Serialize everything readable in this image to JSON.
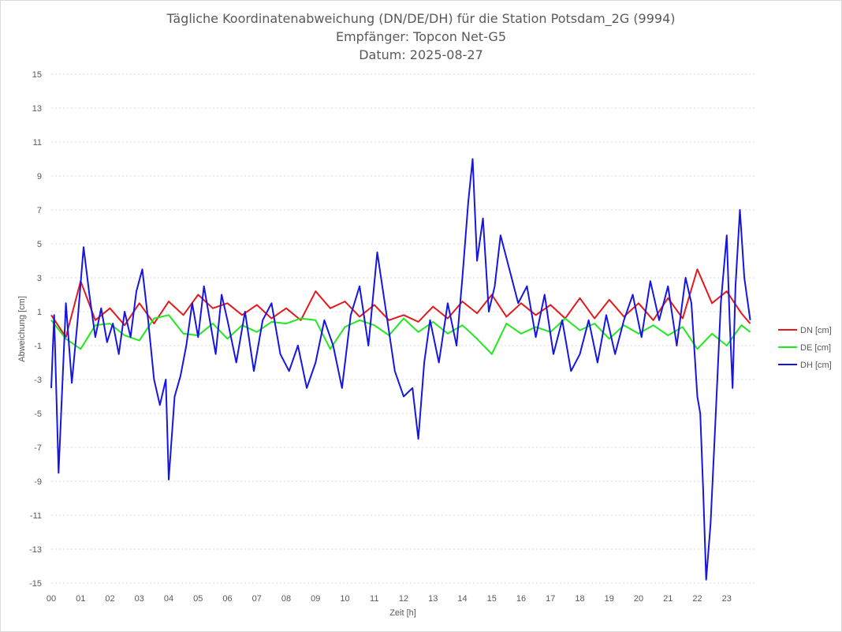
{
  "chart_data": {
    "type": "line",
    "title": [
      "Tägliche Koordinatenabweichung (DN/DE/DH) für die Station Potsdam_2G (9994)",
      "Empfänger: Topcon Net-G5",
      "Datum: 2025-08-27"
    ],
    "xlabel": "Zeit [h]",
    "ylabel": "Abweichung [cm]",
    "xlim": [
      0,
      24
    ],
    "ylim": [
      -15,
      15
    ],
    "x_ticks": [
      "00",
      "01",
      "02",
      "03",
      "04",
      "05",
      "06",
      "07",
      "08",
      "09",
      "10",
      "11",
      "12",
      "13",
      "14",
      "15",
      "16",
      "17",
      "18",
      "19",
      "20",
      "21",
      "22",
      "23"
    ],
    "y_ticks": [
      15,
      13,
      11,
      9,
      7,
      5,
      3,
      1,
      -1,
      -3,
      -5,
      -7,
      -9,
      -11,
      -13,
      -15
    ],
    "grid": "horizontal-dotted",
    "legend_position": "right",
    "series": [
      {
        "name": "DN [cm]",
        "color": "#e31a1c",
        "x": [
          0,
          0.5,
          1,
          1.5,
          2,
          2.5,
          3,
          3.5,
          4,
          4.5,
          5,
          5.5,
          6,
          6.5,
          7,
          7.5,
          8,
          8.5,
          9,
          9.5,
          10,
          10.5,
          11,
          11.5,
          12,
          12.5,
          13,
          13.5,
          14,
          14.5,
          15,
          15.5,
          16,
          16.5,
          17,
          17.5,
          18,
          18.5,
          19,
          19.5,
          20,
          20.5,
          21,
          21.5,
          22,
          22.5,
          23,
          23.5,
          23.8
        ],
        "values": [
          0.8,
          -0.5,
          2.8,
          0.5,
          1.2,
          0.2,
          1.5,
          0.3,
          1.6,
          0.8,
          2.0,
          1.2,
          1.5,
          0.8,
          1.4,
          0.6,
          1.2,
          0.5,
          2.2,
          1.2,
          1.6,
          0.7,
          1.4,
          0.5,
          0.8,
          0.4,
          1.3,
          0.6,
          1.6,
          0.9,
          2.0,
          0.7,
          1.5,
          0.8,
          1.4,
          0.6,
          1.8,
          0.6,
          1.7,
          0.7,
          1.5,
          0.5,
          1.8,
          0.6,
          3.5,
          1.5,
          2.2,
          0.9,
          0.3
        ]
      },
      {
        "name": "DE [cm]",
        "color": "#22e81f",
        "x": [
          0,
          0.5,
          1,
          1.5,
          2,
          2.5,
          3,
          3.5,
          4,
          4.5,
          5,
          5.5,
          6,
          6.5,
          7,
          7.5,
          8,
          8.5,
          9,
          9.5,
          10,
          10.5,
          11,
          11.5,
          12,
          12.5,
          13,
          13.5,
          14,
          14.5,
          15,
          15.5,
          16,
          16.5,
          17,
          17.5,
          18,
          18.5,
          19,
          19.5,
          20,
          20.5,
          21,
          21.5,
          22,
          22.5,
          23,
          23.5,
          23.8
        ],
        "values": [
          0.5,
          -0.6,
          -1.2,
          0.2,
          0.3,
          -0.4,
          -0.7,
          0.6,
          0.8,
          -0.3,
          -0.4,
          0.3,
          -0.6,
          0.2,
          -0.2,
          0.4,
          0.3,
          0.6,
          0.5,
          -1.2,
          0.1,
          0.5,
          0.2,
          -0.4,
          0.6,
          -0.2,
          0.4,
          -0.3,
          0.2,
          -0.6,
          -1.5,
          0.3,
          -0.3,
          0.1,
          -0.2,
          0.6,
          -0.1,
          0.3,
          -0.6,
          0.2,
          -0.3,
          0.2,
          -0.4,
          0.1,
          -1.2,
          -0.3,
          -1.0,
          0.2,
          -0.2
        ]
      },
      {
        "name": "DH [cm]",
        "color": "#1616e0",
        "x": [
          0,
          0.1,
          0.25,
          0.35,
          0.5,
          0.7,
          0.9,
          1.1,
          1.3,
          1.5,
          1.7,
          1.9,
          2.1,
          2.3,
          2.5,
          2.7,
          2.9,
          3.1,
          3.3,
          3.5,
          3.7,
          3.9,
          4.0,
          4.2,
          4.4,
          4.6,
          4.8,
          5.0,
          5.2,
          5.4,
          5.6,
          5.8,
          6.0,
          6.3,
          6.6,
          6.9,
          7.2,
          7.5,
          7.8,
          8.1,
          8.4,
          8.7,
          9.0,
          9.3,
          9.6,
          9.9,
          10.2,
          10.5,
          10.8,
          11.1,
          11.4,
          11.7,
          12.0,
          12.3,
          12.5,
          12.7,
          12.9,
          13.2,
          13.5,
          13.8,
          14.0,
          14.2,
          14.35,
          14.5,
          14.7,
          14.9,
          15.1,
          15.3,
          15.6,
          15.9,
          16.2,
          16.5,
          16.8,
          17.1,
          17.4,
          17.7,
          18.0,
          18.3,
          18.6,
          18.9,
          19.2,
          19.5,
          19.8,
          20.1,
          20.4,
          20.7,
          21.0,
          21.3,
          21.6,
          21.8,
          22.0,
          22.1,
          22.2,
          22.3,
          22.45,
          22.6,
          22.8,
          23.0,
          23.1,
          23.2,
          23.3,
          23.45,
          23.6,
          23.8
        ],
        "values": [
          -3.5,
          0.8,
          -8.5,
          -4.5,
          1.5,
          -3.2,
          0.5,
          4.8,
          2.0,
          -0.5,
          1.2,
          -0.8,
          0.3,
          -1.5,
          1.0,
          -0.5,
          2.2,
          3.5,
          0.5,
          -3.0,
          -4.5,
          -3.0,
          -8.9,
          -4.0,
          -2.8,
          -1.0,
          1.5,
          -0.5,
          2.5,
          0.5,
          -1.5,
          2.0,
          0.5,
          -2.0,
          1.0,
          -2.5,
          0.5,
          1.5,
          -1.5,
          -2.5,
          -1.0,
          -3.5,
          -2.0,
          0.5,
          -1.0,
          -3.5,
          0.8,
          2.5,
          -1.0,
          4.5,
          1.0,
          -2.5,
          -4.0,
          -3.5,
          -6.5,
          -2.0,
          0.5,
          -2.0,
          1.5,
          -1.0,
          3.0,
          7.5,
          10.0,
          4.0,
          6.5,
          1.0,
          2.5,
          5.5,
          3.5,
          1.5,
          2.5,
          -0.5,
          2.0,
          -1.5,
          0.5,
          -2.5,
          -1.5,
          0.5,
          -2.0,
          0.8,
          -1.5,
          0.5,
          2.0,
          -0.5,
          2.8,
          0.5,
          2.5,
          -1.0,
          3.0,
          1.5,
          -4.0,
          -5.0,
          -9.5,
          -14.8,
          -11.5,
          -6.0,
          1.5,
          5.5,
          0.5,
          -3.5,
          2.5,
          7.0,
          3.0,
          0.5
        ]
      }
    ]
  }
}
